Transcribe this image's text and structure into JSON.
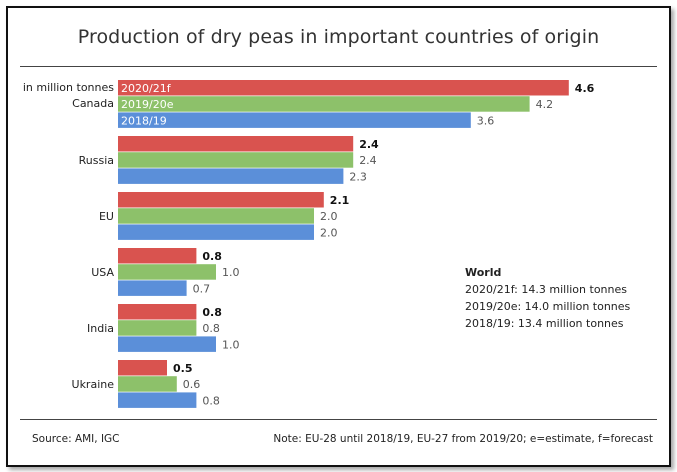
{
  "title": "Production of dry peas in important countries of origin",
  "source": "Source:  AMI, IGC",
  "note": "Note: EU-28 until 2018/19, EU-27 from 2019/20; e=estimate, f=forecast",
  "world": {
    "title": "World",
    "lines": [
      "2020/21f:  14.3 million tonnes",
      "2019/20e:  14.0 million tonnes",
      "2018/19:   13.4 million tonnes"
    ]
  },
  "chart_data": {
    "type": "bar",
    "orientation": "horizontal",
    "unit_label": "in million tonnes",
    "categories": [
      "Canada",
      "Russia",
      "EU",
      "USA",
      "India",
      "Ukraine"
    ],
    "series": [
      {
        "name": "2020/21f",
        "color": "#d9534f",
        "values": [
          4.6,
          2.4,
          2.1,
          0.8,
          0.8,
          0.5
        ]
      },
      {
        "name": "2019/20e",
        "color": "#8dc16a",
        "values": [
          4.2,
          2.4,
          2.0,
          1.0,
          0.8,
          0.6
        ]
      },
      {
        "name": "2018/19",
        "color": "#5b8fd9",
        "values": [
          3.6,
          2.3,
          2.0,
          0.7,
          1.0,
          0.8
        ]
      }
    ],
    "value_labels": [
      [
        "4.6",
        "2.4",
        "2.1",
        "0.8",
        "0.8",
        "0.5"
      ],
      [
        "4.2",
        "2.4",
        "2.0",
        "1.0",
        "0.8",
        "0.6"
      ],
      [
        "3.6",
        "2.3",
        "2.0",
        "0.7",
        "1.0",
        "0.8"
      ]
    ],
    "series_labels_on_first_category": true,
    "xlim": [
      0,
      4.6
    ],
    "grid": false,
    "legend": "none"
  }
}
